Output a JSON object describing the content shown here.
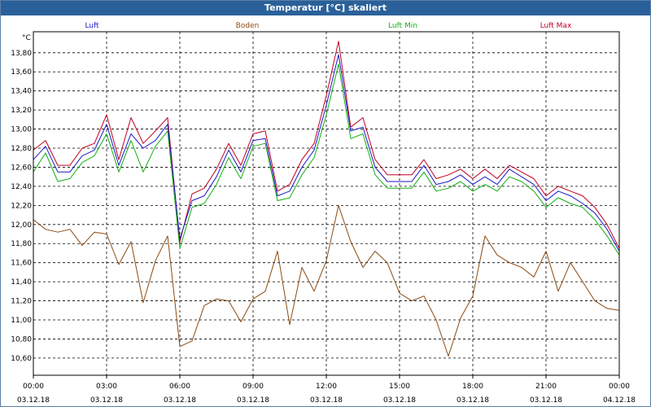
{
  "window": {
    "title": "Temperatur [°C] skaliert"
  },
  "colors": {
    "luft": "#1a1ac8",
    "boden": "#8b4a10",
    "luft_min": "#10b010",
    "luft_max": "#c00020",
    "grid": "#000000",
    "titlebar": "#2a6099"
  },
  "chart_data": {
    "type": "line",
    "title": "Temperatur [°C] skaliert",
    "ylabel": "°C",
    "xlabel": "",
    "ylim": [
      10.42,
      14.02
    ],
    "xlim": [
      0,
      24
    ],
    "y_ticks": [
      "13,80",
      "13,60",
      "13,40",
      "13,20",
      "13,00",
      "12,80",
      "12,60",
      "12,40",
      "12,20",
      "12,00",
      "11,80",
      "11,60",
      "11,40",
      "11,20",
      "11,00",
      "10,80",
      "10,60"
    ],
    "y_tick_values": [
      13.8,
      13.6,
      13.4,
      13.2,
      13.0,
      12.8,
      12.6,
      12.4,
      12.2,
      12.0,
      11.8,
      11.6,
      11.4,
      11.2,
      11.0,
      10.8,
      10.6
    ],
    "x_ticks": [
      {
        "x": 0,
        "time": "00:00",
        "date": "03.12.18"
      },
      {
        "x": 3,
        "time": "03:00",
        "date": "03.12.18"
      },
      {
        "x": 6,
        "time": "06:00",
        "date": "03.12.18"
      },
      {
        "x": 9,
        "time": "09:00",
        "date": "03.12.18"
      },
      {
        "x": 12,
        "time": "12:00",
        "date": "03.12.18"
      },
      {
        "x": 15,
        "time": "15:00",
        "date": "03.12.18"
      },
      {
        "x": 18,
        "time": "18:00",
        "date": "03.12.18"
      },
      {
        "x": 21,
        "time": "21:00",
        "date": "03.12.18"
      },
      {
        "x": 24,
        "time": "00:00",
        "date": "04.12.18"
      }
    ],
    "grid": true,
    "legend_position": "top",
    "x": [
      0,
      0.5,
      1,
      1.5,
      2,
      2.5,
      3,
      3.5,
      4,
      4.5,
      5,
      5.5,
      6,
      6.5,
      7,
      7.5,
      8,
      8.5,
      9,
      9.5,
      10,
      10.5,
      11,
      11.5,
      12,
      12.5,
      13,
      13.5,
      14,
      14.5,
      15,
      15.5,
      16,
      16.5,
      17,
      17.5,
      18,
      18.5,
      19,
      19.5,
      20,
      20.5,
      21,
      21.5,
      22,
      22.5,
      23,
      23.5,
      24
    ],
    "series": [
      {
        "name": "Luft",
        "color_key": "luft",
        "values": [
          12.68,
          12.82,
          12.55,
          12.55,
          12.72,
          12.78,
          13.05,
          12.62,
          12.95,
          12.8,
          12.88,
          13.05,
          11.85,
          12.25,
          12.3,
          12.5,
          12.78,
          12.55,
          12.88,
          12.9,
          12.3,
          12.35,
          12.6,
          12.78,
          13.25,
          13.78,
          12.98,
          13.02,
          12.6,
          12.45,
          12.45,
          12.45,
          12.62,
          12.42,
          12.45,
          12.52,
          12.42,
          12.5,
          12.42,
          12.58,
          12.5,
          12.42,
          12.25,
          12.35,
          12.3,
          12.22,
          12.12,
          11.95,
          11.72
        ]
      },
      {
        "name": "Boden",
        "color_key": "boden",
        "values": [
          12.05,
          11.95,
          11.92,
          11.95,
          11.78,
          11.92,
          11.9,
          11.58,
          11.82,
          11.18,
          11.62,
          11.88,
          10.72,
          10.78,
          11.15,
          11.22,
          11.2,
          10.98,
          11.22,
          11.3,
          11.72,
          10.95,
          11.55,
          11.3,
          11.62,
          12.2,
          11.82,
          11.55,
          11.72,
          11.6,
          11.28,
          11.2,
          11.25,
          11.0,
          10.62,
          11.02,
          11.25,
          11.88,
          11.68,
          11.6,
          11.55,
          11.45,
          11.72,
          11.3,
          11.6,
          11.4,
          11.2,
          11.12,
          11.1
        ]
      },
      {
        "name": "Luft Min",
        "color_key": "luft_min",
        "values": [
          12.55,
          12.75,
          12.45,
          12.48,
          12.65,
          12.72,
          12.95,
          12.55,
          12.88,
          12.55,
          12.82,
          12.98,
          11.75,
          12.18,
          12.22,
          12.42,
          12.7,
          12.48,
          12.82,
          12.85,
          12.25,
          12.28,
          12.52,
          12.7,
          13.15,
          13.68,
          12.9,
          12.95,
          12.52,
          12.38,
          12.38,
          12.38,
          12.55,
          12.35,
          12.38,
          12.45,
          12.35,
          12.42,
          12.35,
          12.5,
          12.45,
          12.35,
          12.18,
          12.28,
          12.22,
          12.18,
          12.05,
          11.88,
          11.68
        ]
      },
      {
        "name": "Luft Max",
        "color_key": "luft_max",
        "values": [
          12.78,
          12.88,
          12.62,
          12.62,
          12.8,
          12.85,
          13.15,
          12.68,
          13.12,
          12.85,
          12.98,
          13.12,
          11.82,
          12.32,
          12.38,
          12.58,
          12.85,
          12.62,
          12.95,
          12.98,
          12.35,
          12.42,
          12.68,
          12.85,
          13.35,
          13.92,
          13.02,
          13.12,
          12.68,
          12.52,
          12.52,
          12.52,
          12.68,
          12.48,
          12.52,
          12.58,
          12.48,
          12.58,
          12.48,
          12.62,
          12.55,
          12.48,
          12.3,
          12.4,
          12.35,
          12.3,
          12.18,
          12.0,
          11.75
        ]
      }
    ]
  }
}
